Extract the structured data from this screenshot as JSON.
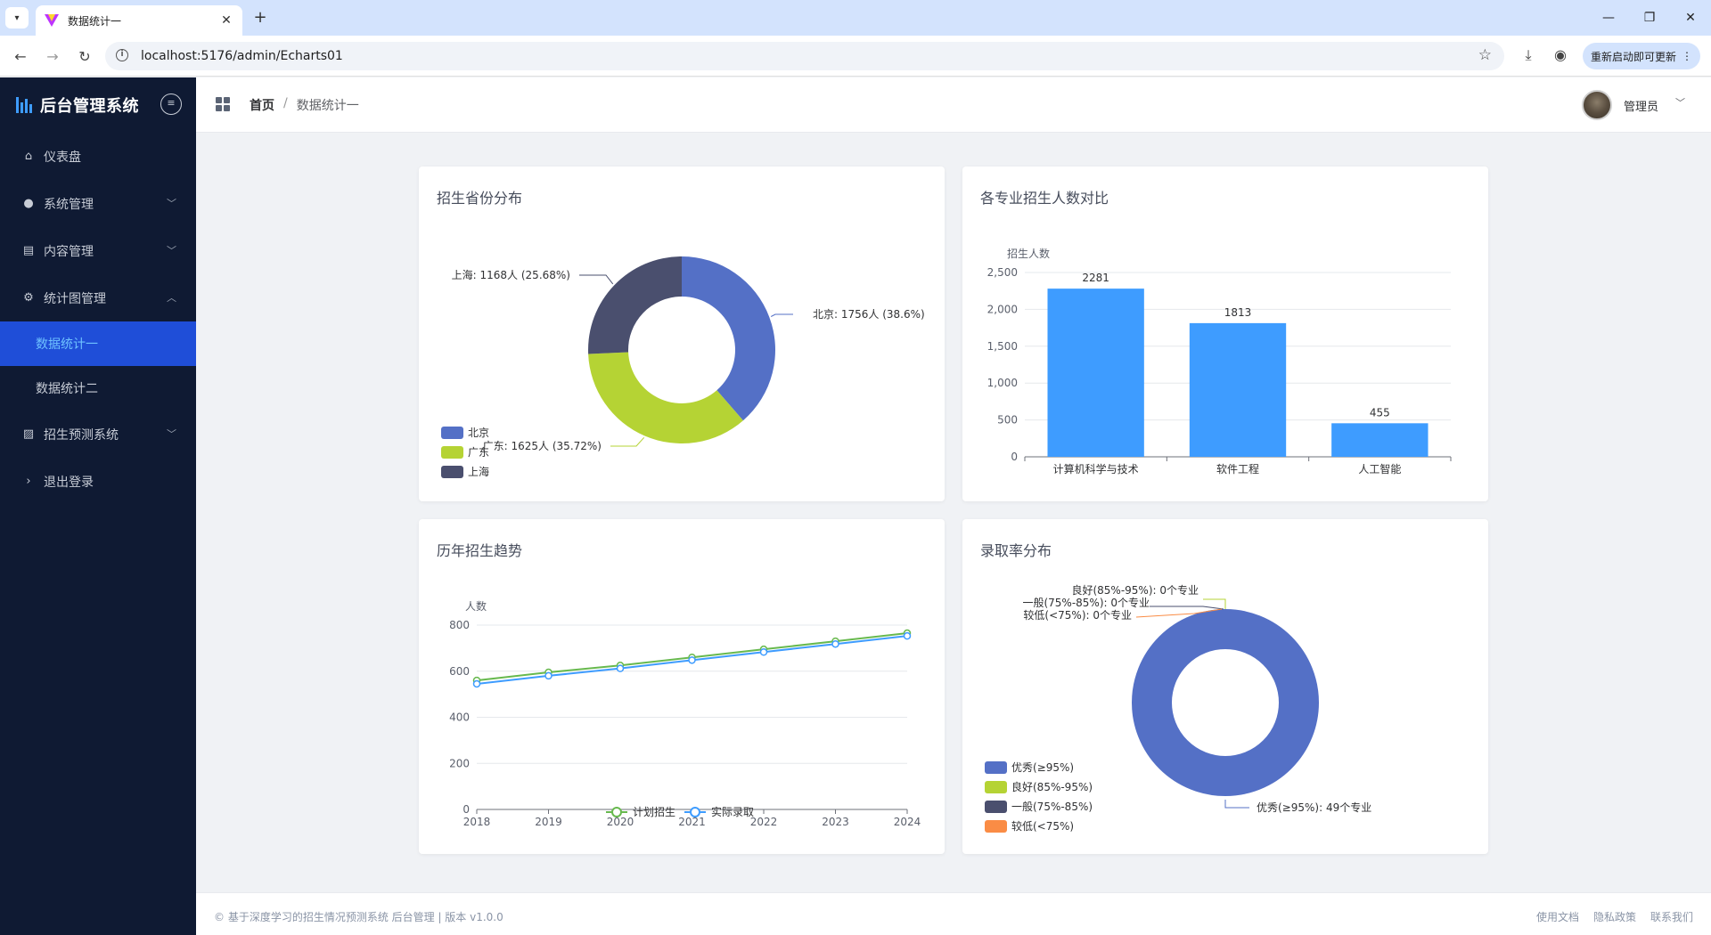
{
  "browser": {
    "tab_title": "数据统计一",
    "url": "localhost:5176/admin/Echarts01",
    "update_button": "重新启动即可更新"
  },
  "sidebar": {
    "brand": "后台管理系统",
    "items": [
      {
        "label": "仪表盘",
        "icon": "home-icon"
      },
      {
        "label": "系统管理",
        "icon": "user-icon"
      },
      {
        "label": "内容管理",
        "icon": "document-icon"
      },
      {
        "label": "统计图管理",
        "icon": "gear-icon"
      },
      {
        "label": "招生预测系统",
        "icon": "chart-icon"
      },
      {
        "label": "退出登录",
        "icon": "chevron-right-icon"
      }
    ],
    "subitems": [
      {
        "label": "数据统计一",
        "active": true
      },
      {
        "label": "数据统计二",
        "active": false
      }
    ]
  },
  "header": {
    "breadcrumb_home": "首页",
    "breadcrumb_sep": "/",
    "breadcrumb_current": "数据统计一",
    "username": "管理员"
  },
  "cards": {
    "province": {
      "title": "招生省份分布",
      "chart_data": {
        "type": "pie",
        "donut": true,
        "slices": [
          {
            "name": "北京",
            "value": 1756,
            "label": "北京: 1756人 (38.6%)",
            "color": "#5470c6"
          },
          {
            "name": "广东",
            "value": 1625,
            "label": "广东: 1625人 (35.72%)",
            "color": "#b5d334"
          },
          {
            "name": "上海",
            "value": 1168,
            "label": "上海: 1168人 (25.68%)",
            "color": "#4a4f6e"
          }
        ],
        "legend_position": "bottom-left"
      }
    },
    "major": {
      "title": "各专业招生人数对比",
      "chart_data": {
        "type": "bar",
        "ylabel": "招生人数",
        "categories": [
          "计算机科学与技术",
          "软件工程",
          "人工智能"
        ],
        "values": [
          2281,
          1813,
          455
        ],
        "ylim": [
          0,
          2500
        ],
        "yticks": [
          "0",
          "500",
          "1,000",
          "1,500",
          "2,000",
          "2,500"
        ],
        "color": "#3e9cff",
        "grid": true
      }
    },
    "trend": {
      "title": "历年招生趋势",
      "chart_data": {
        "type": "line",
        "ylabel": "人数",
        "x": [
          "2018",
          "2019",
          "2020",
          "2021",
          "2022",
          "2023",
          "2024"
        ],
        "ylim": [
          0,
          800
        ],
        "yticks": [
          "0",
          "200",
          "400",
          "600",
          "800"
        ],
        "series": [
          {
            "name": "计划招生",
            "values": [
              560,
              595,
              625,
              660,
              695,
              730,
              765
            ],
            "color": "#67b94e"
          },
          {
            "name": "实际录取",
            "values": [
              545,
              580,
              612,
              648,
              683,
              718,
              753
            ],
            "color": "#3e9cff"
          }
        ],
        "legend_position": "bottom-center",
        "grid": true
      }
    },
    "admission": {
      "title": "录取率分布",
      "chart_data": {
        "type": "pie",
        "donut": true,
        "slices": [
          {
            "name": "优秀(≥95%)",
            "value": 49,
            "label": "优秀(≥95%): 49个专业",
            "color": "#5470c6"
          },
          {
            "name": "良好(85%-95%)",
            "value": 0,
            "label": "良好(85%-95%): 0个专业",
            "color": "#b5d334"
          },
          {
            "name": "一般(75%-85%)",
            "value": 0,
            "label": "一般(75%-85%): 0个专业",
            "color": "#4a4f6e"
          },
          {
            "name": "较低(<75%)",
            "value": 0,
            "label": "较低(<75%): 0个专业",
            "color": "#fa8c45"
          }
        ],
        "legend_position": "bottom-left"
      }
    }
  },
  "footer": {
    "left": "© 基于深度学习的招生情况预测系统 后台管理 | 版本 v1.0.0",
    "links": [
      "使用文档",
      "隐私政策",
      "联系我们"
    ]
  }
}
